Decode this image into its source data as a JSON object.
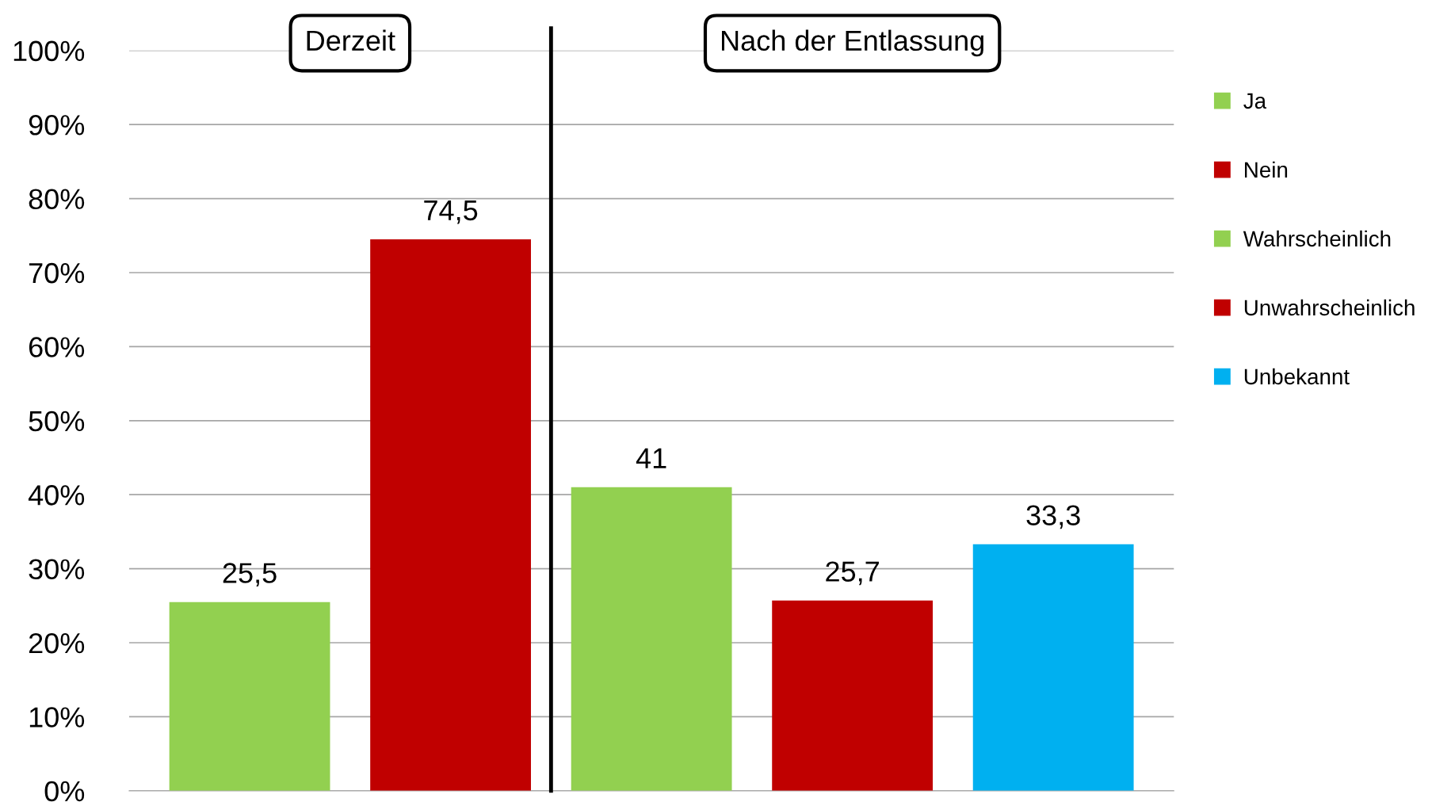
{
  "chart_data": {
    "type": "bar",
    "categories": [
      null,
      null,
      null,
      null,
      null
    ],
    "series": [
      {
        "name": "Ja",
        "color": "#92d050",
        "values": [
          25.5,
          null,
          null,
          null,
          null
        ],
        "value_labels": [
          "25,5",
          null,
          null,
          null,
          null
        ]
      },
      {
        "name": "Nein",
        "color": "#c00000",
        "values": [
          null,
          74.5,
          null,
          null,
          null
        ],
        "value_labels": [
          null,
          "74,5",
          null,
          null,
          null
        ]
      },
      {
        "name": "Wahrscheinlich",
        "color": "#92d050",
        "values": [
          null,
          null,
          41,
          null,
          null
        ],
        "value_labels": [
          null,
          null,
          "41",
          null,
          null
        ]
      },
      {
        "name": "Unwahrscheinlich",
        "color": "#c00000",
        "values": [
          null,
          null,
          null,
          25.7,
          null
        ],
        "value_labels": [
          null,
          null,
          null,
          "25,7",
          null
        ]
      },
      {
        "name": "Unbekannt",
        "color": "#00b0f0",
        "values": [
          null,
          null,
          null,
          null,
          33.3
        ],
        "value_labels": [
          null,
          null,
          null,
          null,
          "33,3"
        ]
      }
    ],
    "ylim": [
      0,
      100
    ],
    "yticks": [
      {
        "value": 0,
        "label": "0%"
      },
      {
        "value": 10,
        "label": "10%"
      },
      {
        "value": 20,
        "label": "20%"
      },
      {
        "value": 30,
        "label": "30%"
      },
      {
        "value": 40,
        "label": "40%"
      },
      {
        "value": 50,
        "label": "50%"
      },
      {
        "value": 60,
        "label": "60%"
      },
      {
        "value": 70,
        "label": "70%"
      },
      {
        "value": 80,
        "label": "80%"
      },
      {
        "value": 90,
        "label": "90%"
      },
      {
        "value": 100,
        "label": "100%"
      }
    ],
    "annotations": [
      "Derzeit",
      "Nach der Entlassung"
    ],
    "grid": "y",
    "legend": "right",
    "tick_labels": "y"
  }
}
